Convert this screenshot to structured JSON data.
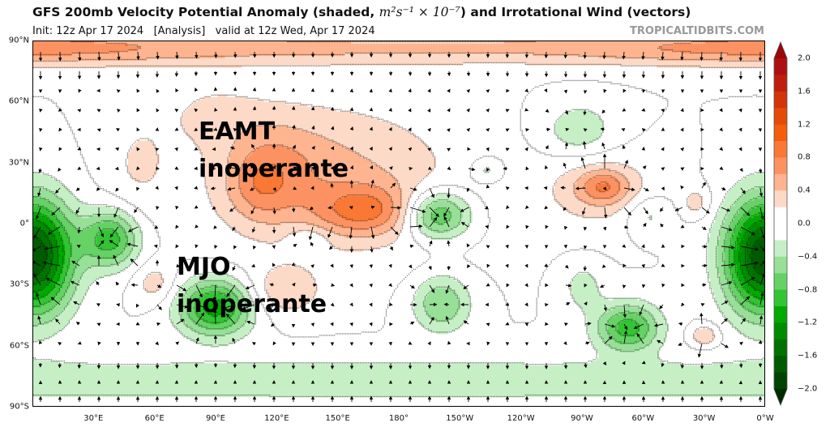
{
  "header": {
    "title_pre": "GFS 200mb Velocity Potential Anomaly (shaded, ",
    "title_units": "m²s⁻¹ × 10⁻⁷",
    "title_post": ") and Irrotational Wind (vectors)",
    "subtitle": "Init: 12z Apr 17 2024   [Analysis]   valid at 12z Wed, Apr 17 2024",
    "brand": "TROPICALTIDBITS.COM"
  },
  "axes": {
    "lat_labels": [
      "90°N",
      "60°N",
      "30°N",
      "0°",
      "30°S",
      "60°S",
      "90°S"
    ],
    "lon_labels": [
      "30°E",
      "60°E",
      "90°E",
      "120°E",
      "150°E",
      "180°",
      "150°W",
      "120°W",
      "90°W",
      "60°W",
      "30°W",
      "0°W"
    ]
  },
  "annotations": {
    "eamt_1": "EAMT",
    "eamt_2": "inoperante",
    "mjo_1": "MJO",
    "mjo_2": "inoperante"
  },
  "colorbar": {
    "tick_labels": [
      "2.0",
      "1.6",
      "1.2",
      "0.8",
      "0.4",
      "0.0",
      "−0.4",
      "−0.8",
      "−1.2",
      "−1.6",
      "−2.0"
    ],
    "range": [
      -2.0,
      2.0
    ],
    "step": 0.2,
    "colors_neg": [
      "#c6efc6",
      "#98e098",
      "#66d266",
      "#33c433",
      "#00aa00",
      "#008c00",
      "#007200",
      "#005a00",
      "#004400"
    ],
    "colors_pos": [
      "#fdd9c7",
      "#fdb48f",
      "#fc9262",
      "#f97834",
      "#f45d0c",
      "#e44a08",
      "#d33408",
      "#c01e0c",
      "#ad1010"
    ],
    "under_color": "#002a00",
    "over_color": "#9c0606"
  }
}
